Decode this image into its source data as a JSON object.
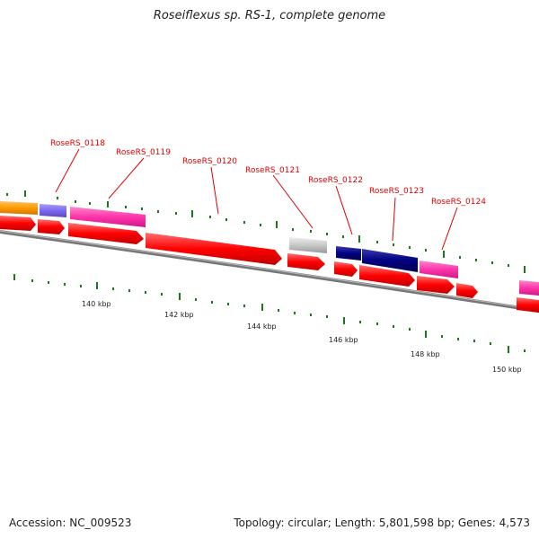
{
  "title": "Roseiflexus sp. RS-1, complete genome",
  "footer": {
    "accession": "Accession: NC_009523",
    "summary": "Topology: circular; Length: 5,801,598 bp; Genes: 4,573"
  },
  "colors": {
    "cds_red": "#ff0000",
    "orange": "#ff9900",
    "purple": "#7b68ee",
    "pink": "#ff33aa",
    "gray": "#c8c8c8",
    "navy": "#000080",
    "tick_green": "#1a7a1a",
    "label_red": "#e00000",
    "backbone": "#888888"
  },
  "gene_labels": [
    "RoseRS_0118",
    "RoseRS_0119",
    "RoseRS_0120",
    "RoseRS_0121",
    "RoseRS_0122",
    "RoseRS_0123",
    "RoseRS_0124"
  ],
  "scale_labels": [
    "140 kbp",
    "142 kbp",
    "144 kbp",
    "146 kbp",
    "148 kbp",
    "150 kbp"
  ]
}
